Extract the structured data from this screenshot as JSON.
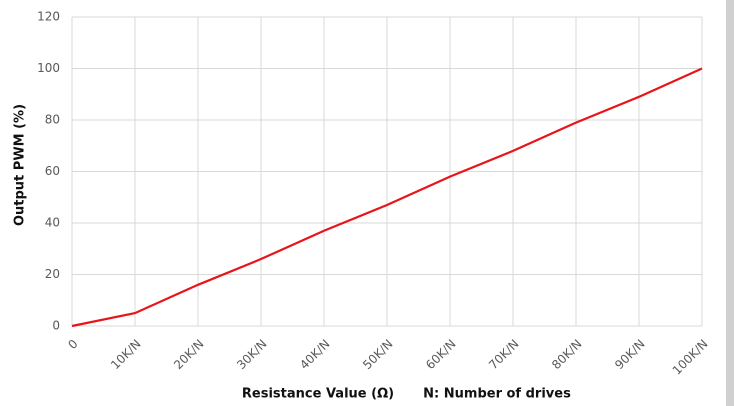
{
  "chart_data": {
    "type": "line",
    "ylabel": "Output PWM (%)",
    "xlabel": "Resistance Value (Ω)",
    "annotation": "N:  Number of drives",
    "categories": [
      "0",
      "10K/N",
      "20K/N",
      "30K/N",
      "40K/N",
      "50K/N",
      "60K/N",
      "70K/N",
      "80K/N",
      "90K/N",
      "100K/N"
    ],
    "values": [
      0,
      5,
      16,
      26,
      37,
      47,
      58,
      68,
      79,
      89,
      100
    ],
    "color": "#e8141a",
    "ylim": [
      0,
      120
    ],
    "yticks": [
      0,
      20,
      40,
      60,
      80,
      100,
      120
    ],
    "grid": true
  }
}
